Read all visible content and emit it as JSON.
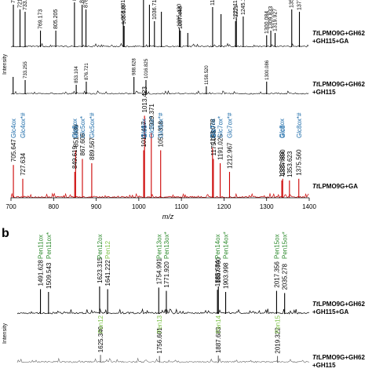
{
  "chart_data": [
    {
      "panel": "",
      "type": "line",
      "xlabel": "m/z",
      "ylabel": "Intensity",
      "xlim": [
        700,
        1400
      ],
      "xticks": [
        700,
        800,
        900,
        1000,
        1100,
        1200,
        1300,
        1400
      ],
      "series": [
        {
          "name": "TtLPMO9G+GH62+GH115+GA",
          "color": "#000000",
          "peaks": [
            {
              "mz": 705.638,
              "h": 0.9,
              "label": "705.638"
            },
            {
              "mz": 721.167,
              "h": 0.8,
              "label": "721.167"
            },
            {
              "mz": 733.163,
              "h": 0.75,
              "label": "733.163"
            },
            {
              "mz": 769.173,
              "h": 0.35,
              "label": "769.173"
            },
            {
              "mz": 805.205,
              "h": 0.35,
              "label": "805.205"
            },
            {
              "mz": 849.0,
              "h": 0.95,
              "label": "849"
            },
            {
              "mz": 867.0,
              "h": 0.9,
              "label": "867"
            },
            {
              "mz": 876.0,
              "h": 0.8,
              "label": "876"
            },
            {
              "mz": 963.601,
              "h": 0.55,
              "label": "963.601"
            },
            {
              "mz": 965.53,
              "h": 0.45,
              "label": "965.530"
            },
            {
              "mz": 1011.0,
              "h": 1.0,
              "label": "1011"
            },
            {
              "mz": 1025.0,
              "h": 0.9,
              "label": ""
            },
            {
              "mz": 1036.712,
              "h": 0.55,
              "label": "1036.712"
            },
            {
              "mz": 1053.0,
              "h": 0.75,
              "label": ""
            },
            {
              "mz": 1095.43,
              "h": 0.4,
              "label": "1095.430"
            },
            {
              "mz": 1097.446,
              "h": 0.35,
              "label": "1097.446"
            },
            {
              "mz": 1115.0,
              "h": 0.3,
              "label": ""
            },
            {
              "mz": 1173.26,
              "h": 0.85,
              "label": "1173.26"
            },
            {
              "mz": 1193.0,
              "h": 0.7,
              "label": ""
            },
            {
              "mz": 1227.11,
              "h": 0.55,
              "label": "1227.11"
            },
            {
              "mz": 1229.0,
              "h": 0.6,
              "label": "1229"
            },
            {
              "mz": 1245.13,
              "h": 0.65,
              "label": "1245.13"
            },
            {
              "mz": 1300.084,
              "h": 0.25,
              "label": "1300.084"
            },
            {
              "mz": 1309.833,
              "h": 0.35,
              "label": "1309.833"
            },
            {
              "mz": 1319.927,
              "h": 0.3,
              "label": "1319.927"
            },
            {
              "mz": 1359.0,
              "h": 0.8,
              "label": "1359"
            },
            {
              "mz": 1377.0,
              "h": 0.75,
              "label": "1377"
            }
          ],
          "series_label_lines": [
            "TtLPMO9G+GH62",
            "+GH115+GA"
          ]
        },
        {
          "name": "TtLPMO9G+GH62+GH115",
          "color": "#000000",
          "peaks": [
            {
              "mz": 705.0,
              "h": 0.55,
              "label": ""
            },
            {
              "mz": 733.255,
              "h": 0.45,
              "label": "733.255"
            },
            {
              "mz": 853.104,
              "h": 0.3,
              "label": "853.104"
            },
            {
              "mz": 876.721,
              "h": 0.4,
              "label": "876.721"
            },
            {
              "mz": 988.628,
              "h": 0.55,
              "label": "988.628"
            },
            {
              "mz": 1016.825,
              "h": 0.45,
              "label": "1016.825"
            },
            {
              "mz": 1158.52,
              "h": 0.25,
              "label": "1158.520"
            },
            {
              "mz": 1300.086,
              "h": 0.4,
              "label": "1300.086"
            }
          ],
          "series_label_lines": [
            "TtLPMO9G+GH62",
            "+GH115"
          ]
        },
        {
          "name": "TtLPMO9G+GA",
          "color": "#cc0000",
          "peaks": [
            {
              "mz": 705.647,
              "h": 0.38,
              "label": "705.647"
            },
            {
              "mz": 727.634,
              "h": 0.22,
              "label": "727.634"
            },
            {
              "mz": 849.619,
              "h": 0.3,
              "label": "849.619"
            },
            {
              "mz": 851.636,
              "h": 0.55,
              "label": "851.636"
            },
            {
              "mz": 867.606,
              "h": 0.45,
              "label": "867.606"
            },
            {
              "mz": 889.567,
              "h": 0.4,
              "label": "889.567"
            },
            {
              "mz": 1011.417,
              "h": 0.55,
              "label": "1011.417"
            },
            {
              "mz": 1013.423,
              "h": 0.95,
              "label": "1013.423"
            },
            {
              "mz": 1029.371,
              "h": 0.75,
              "label": "1029.371"
            },
            {
              "mz": 1051.318,
              "h": 0.55,
              "label": "1051.318"
            },
            {
              "mz": 1173.078,
              "h": 0.58,
              "label": "1173.078"
            },
            {
              "mz": 1175.085,
              "h": 0.45,
              "label": "1175.085"
            },
            {
              "mz": 1191.025,
              "h": 0.4,
              "label": "1191.025"
            },
            {
              "mz": 1212.967,
              "h": 0.3,
              "label": "1212.967"
            },
            {
              "mz": 1335.683,
              "h": 0.2,
              "label": "1335.683"
            },
            {
              "mz": 1337.69,
              "h": 0.22,
              "label": "1337.690"
            },
            {
              "mz": 1353.623,
              "h": 0.2,
              "label": "1353.623"
            },
            {
              "mz": 1375.56,
              "h": 0.22,
              "label": "1375.560"
            }
          ],
          "series_label_lines": [
            "TtLPMO9G+GA"
          ]
        }
      ],
      "annotations": [
        {
          "text": "Glc4ox",
          "mz": 705.6
        },
        {
          "text": "Glc4ox*#",
          "mz": 727.6
        },
        {
          "text": "Glc5ox",
          "mz": 849.6
        },
        {
          "text": "Glc5",
          "mz": 851.6
        },
        {
          "text": "Glc5ox*",
          "mz": 867.6
        },
        {
          "text": "Glc5ox*#",
          "mz": 889.6
        },
        {
          "text": "Glc6ox",
          "mz": 1011.4
        },
        {
          "text": "Glc6",
          "mz": 1013.4
        },
        {
          "text": "Glc6ox*",
          "mz": 1029.4
        },
        {
          "text": "Glc6ox*#",
          "mz": 1051.3
        },
        {
          "text": "Glc7ox",
          "mz": 1173.1
        },
        {
          "text": "Glc7",
          "mz": 1175.1
        },
        {
          "text": "Glc7ox*",
          "mz": 1191.0
        },
        {
          "text": "Glc7ox*#",
          "mz": 1213.0
        },
        {
          "text": "Glc8ox",
          "mz": 1335.7
        },
        {
          "text": "Glc8",
          "mz": 1337.7
        },
        {
          "text": "Glc8ox*#",
          "mz": 1375.6
        }
      ]
    },
    {
      "panel": "b",
      "type": "line",
      "xlabel": "",
      "ylabel": "Intensity",
      "series": [
        {
          "name": "TtLPMO9G+GH62+GH115+GA",
          "color": "#000000",
          "peaks": [
            {
              "mz": 1491.628,
              "h": 0.45,
              "label": "1491.628"
            },
            {
              "mz": 1509.543,
              "h": 0.4,
              "label": "1509.543"
            },
            {
              "mz": 1623.315,
              "h": 0.5,
              "label": "1623.315"
            },
            {
              "mz": 1641.222,
              "h": 0.45,
              "label": "1641.222"
            },
            {
              "mz": 1754.991,
              "h": 0.48,
              "label": "1754.991"
            },
            {
              "mz": 1771.92,
              "h": 0.42,
              "label": "1771.920"
            },
            {
              "mz": 1885.684,
              "h": 0.44,
              "label": "1885.684"
            },
            {
              "mz": 1887.7,
              "h": 0.5,
              "label": "1887.700"
            },
            {
              "mz": 1903.998,
              "h": 0.4,
              "label": "1903.998"
            },
            {
              "mz": 2017.356,
              "h": 0.42,
              "label": "2017.356"
            },
            {
              "mz": 2035.278,
              "h": 0.38,
              "label": "2035.278"
            }
          ],
          "series_label_lines": [
            "TtLPMO9G+GH62",
            "+GH115+GA"
          ]
        },
        {
          "name": "TtLPMO9G+GH62+GH115",
          "color": "#555555",
          "peaks": [
            {
              "mz": 1625.34,
              "h": 0.35,
              "label": "1625.340"
            },
            {
              "mz": 1756.601,
              "h": 0.3,
              "label": "1756.601"
            },
            {
              "mz": 1887.683,
              "h": 0.32,
              "label": "1887.683"
            },
            {
              "mz": 2019.322,
              "h": 0.3,
              "label": "2019.322"
            }
          ],
          "series_label_lines": [
            "TtLPMO9G+GH62",
            "+GH115"
          ]
        }
      ],
      "annotations_black": [
        {
          "text": "Pen11ox",
          "mz": 1491.6,
          "color": "#2e8b2e"
        },
        {
          "text": "Pen11ox*",
          "mz": 1509.5,
          "color": "#2e8b2e"
        },
        {
          "text": "Pen12ox",
          "mz": 1623.3,
          "color": "#2e8b2e"
        },
        {
          "text": "Pen12",
          "mz": 1641.2,
          "color": "#7fc24a"
        },
        {
          "text": "Pen13ox",
          "mz": 1755.0,
          "color": "#2e8b2e"
        },
        {
          "text": "Pen13ox*",
          "mz": 1771.9,
          "color": "#2e8b2e"
        },
        {
          "text": "Pen14ox",
          "mz": 1885.7,
          "color": "#2e8b2e"
        },
        {
          "text": "Pen14ox*",
          "mz": 1904.0,
          "color": "#2e8b2e"
        },
        {
          "text": "Pen15ox",
          "mz": 2017.4,
          "color": "#2e8b2e"
        },
        {
          "text": "Pen15ox*",
          "mz": 2035.3,
          "color": "#2e8b2e"
        }
      ],
      "annotations_grey": [
        {
          "text": "Pen12",
          "mz": 1625.3,
          "color": "#7fc24a"
        },
        {
          "text": "Pen13",
          "mz": 1756.6,
          "color": "#7fc24a"
        },
        {
          "text": "Pen14",
          "mz": 1887.7,
          "color": "#7fc24a"
        },
        {
          "text": "Pen15",
          "mz": 2019.3,
          "color": "#7fc24a"
        }
      ]
    }
  ]
}
